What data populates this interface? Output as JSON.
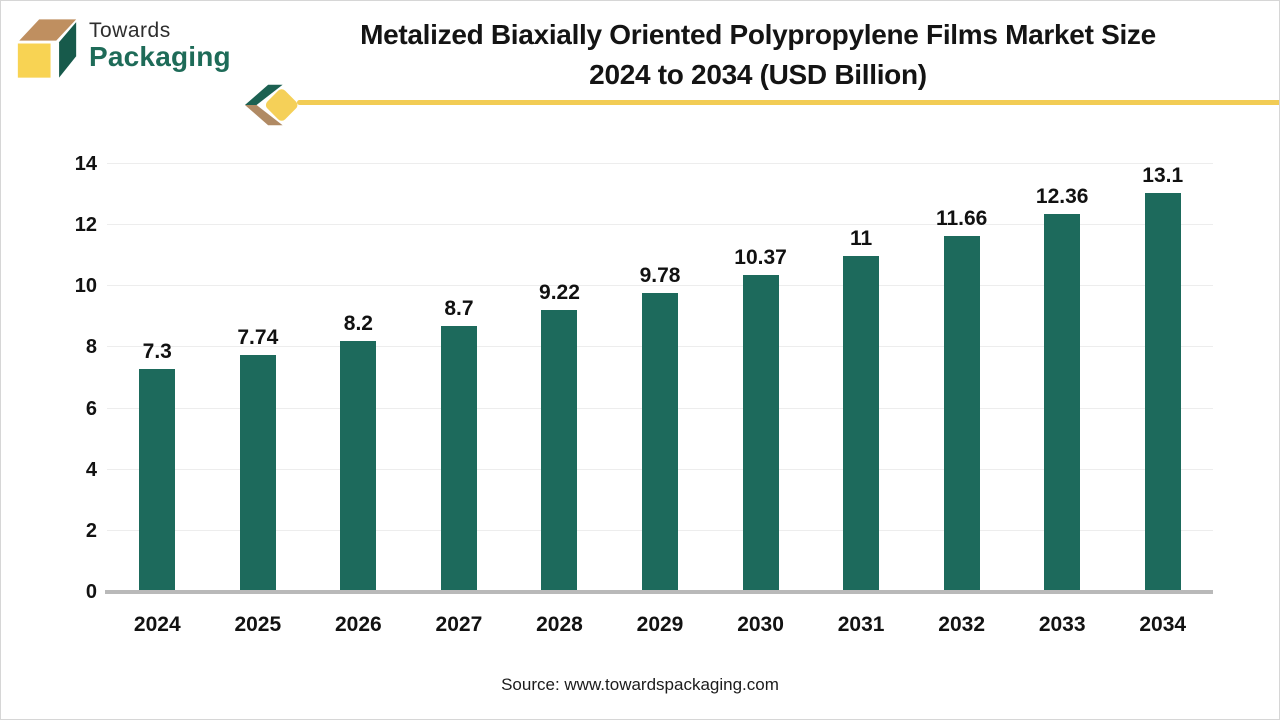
{
  "header": {
    "logo_line1": "Towards",
    "logo_line2": "Packaging",
    "title_line1": "Metalized Biaxially Oriented Polypropylene Films Market Size",
    "title_line2": "2024 to 2034 (USD Billion)"
  },
  "footer": {
    "source": "Source: www.towardspackaging.com"
  },
  "colors": {
    "bar": "#1d6a5c",
    "accent_yellow": "#f2cc55",
    "logo_green": "#1e6b58",
    "logo_tan": "#bf8f60",
    "logo_yellow": "#f8d353",
    "gridline": "#ededed",
    "axis_line": "#b9b9b9"
  },
  "chart_data": {
    "type": "bar",
    "title": "Metalized Biaxially Oriented Polypropylene Films Market Size 2024 to 2034 (USD Billion)",
    "categories": [
      "2024",
      "2025",
      "2026",
      "2027",
      "2028",
      "2029",
      "2030",
      "2031",
      "2032",
      "2033",
      "2034"
    ],
    "values": [
      7.3,
      7.74,
      8.2,
      8.7,
      9.22,
      9.78,
      10.37,
      11,
      11.66,
      12.36,
      13.1
    ],
    "value_labels": [
      "7.3",
      "7.74",
      "8.2",
      "8.7",
      "9.22",
      "9.78",
      "10.37",
      "11",
      "11.66",
      "12.36",
      "13.1"
    ],
    "xlabel": "",
    "ylabel": "",
    "ylim": [
      0,
      14
    ],
    "yticks": [
      0,
      2,
      4,
      6,
      8,
      10,
      12,
      14
    ],
    "grid": true,
    "legend": false,
    "bar_color": "#1d6a5c"
  }
}
